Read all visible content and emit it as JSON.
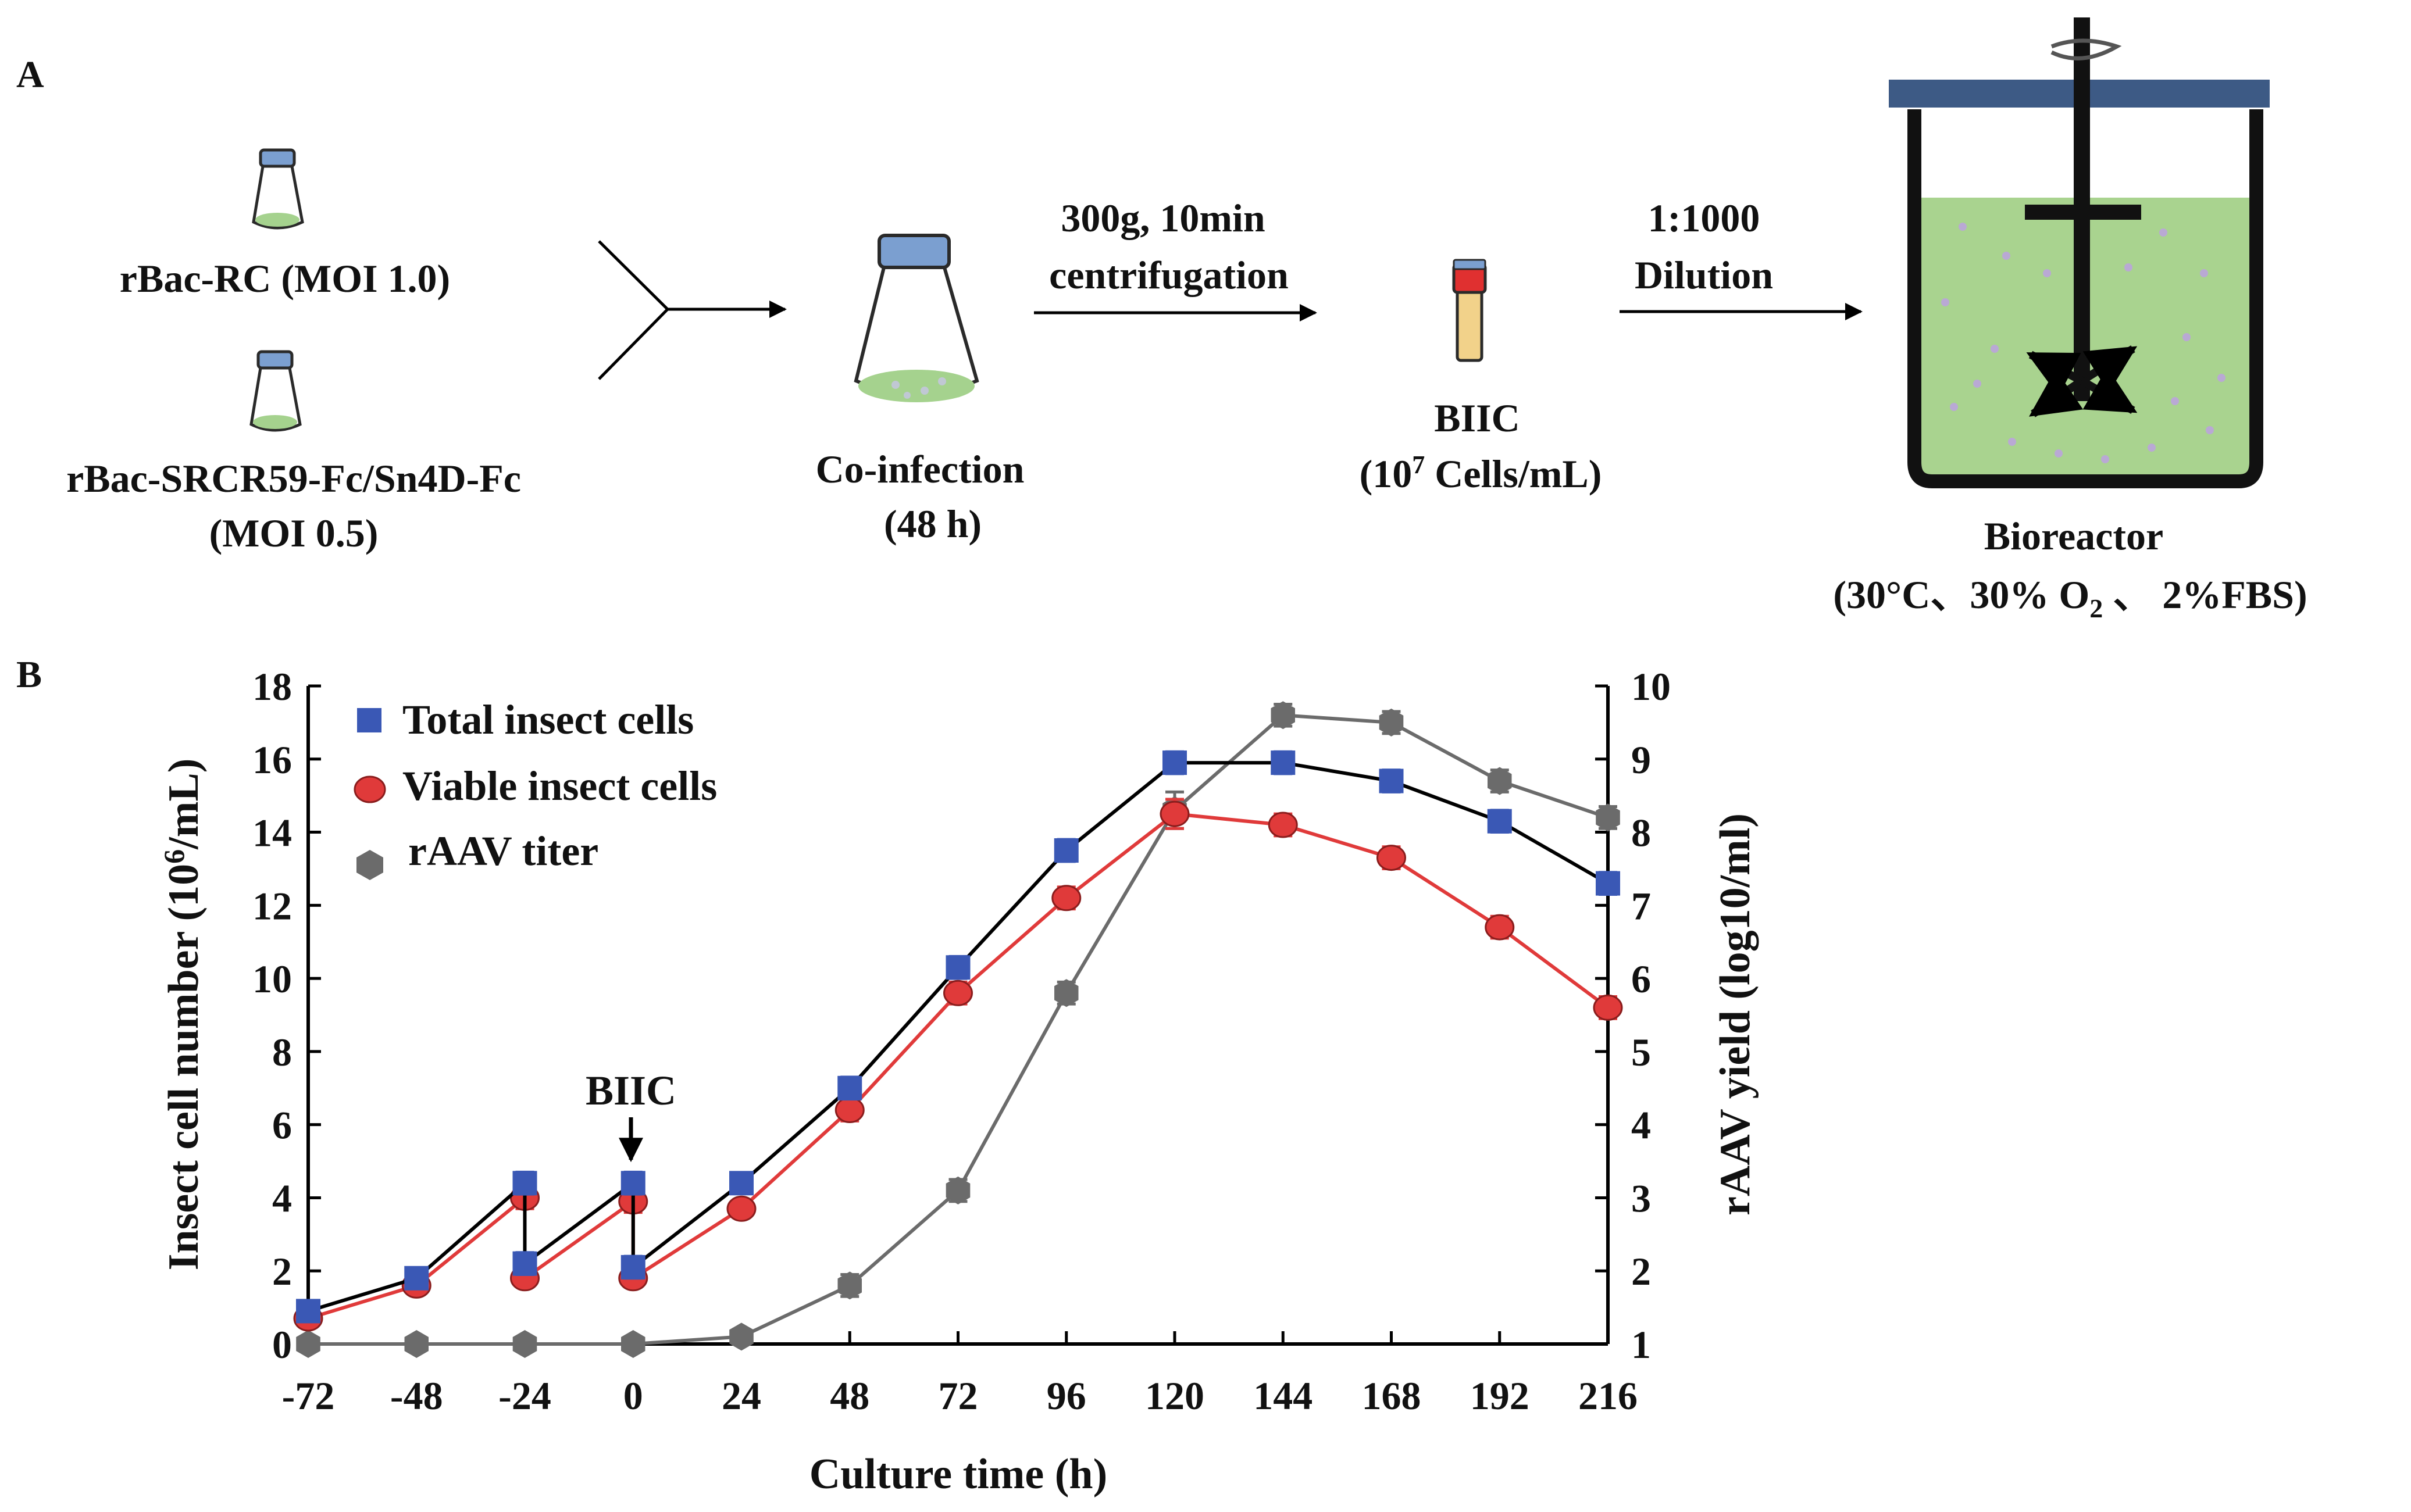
{
  "panel_a": {
    "panel_label": "A",
    "rbac_rc": "rBac-RC (MOI 1.0)",
    "rbac_srcr": "rBac-SRCR59-Fc/Sn4D-Fc",
    "rbac_srcr_moi": "(MOI 0.5)",
    "coinfection": "Co-infection",
    "coinfection_time": "(48 h)",
    "centrifuge_line1": "300g, 10min",
    "centrifuge_line2": "centrifugation",
    "biic": "BIIC",
    "biic_density_pre": "(10",
    "biic_density_exp": "7",
    "biic_density_post": " Cells/mL)",
    "dilution_line1": "1:1000",
    "dilution_line2": "Dilution",
    "bioreactor": "Bioreactor",
    "cond_pre": "(30°C、30% O",
    "cond_sub": "2",
    "cond_post": " 、 2%FBS)",
    "colors": {
      "cap": "#7b9fd0",
      "medium": "#a9d38f",
      "lid": "#3d5a85",
      "tube": "#f2d28a",
      "tube_cap": "#e03030"
    }
  },
  "chart_data": {
    "panel_label": "B",
    "type": "line",
    "xlabel": "Culture time (h)",
    "ylabel_left_pre": "Insect cell number (10",
    "ylabel_left_sup": "6",
    "ylabel_left_post": "/mL)",
    "ylabel_right": "rAAV yield (log10/ml)",
    "x_ticks": [
      -72,
      -48,
      -24,
      0,
      24,
      48,
      72,
      96,
      120,
      144,
      168,
      192,
      216
    ],
    "xlim": [
      -72,
      216
    ],
    "ylim_left": [
      0,
      18
    ],
    "yticks_left": [
      0,
      2,
      4,
      6,
      8,
      10,
      12,
      14,
      16,
      18
    ],
    "ylim_right": [
      1,
      10
    ],
    "yticks_right": [
      1,
      2,
      3,
      4,
      5,
      6,
      7,
      8,
      9,
      10
    ],
    "annotation": {
      "label": "BIIC",
      "x": 0
    },
    "legend_position": "top-left",
    "series": [
      {
        "name": "Total insect cells",
        "axis": "left",
        "marker": "square",
        "color": "#3a58b5",
        "line_color": "#000000",
        "x": [
          -72,
          -48,
          -24,
          -24,
          0,
          0,
          24,
          48,
          72,
          96,
          120,
          144,
          168,
          192,
          216
        ],
        "y": [
          0.9,
          1.8,
          4.4,
          2.2,
          4.4,
          2.1,
          4.4,
          7.0,
          10.3,
          13.5,
          15.9,
          15.9,
          15.4,
          14.3,
          12.6
        ],
        "err": [
          0.2,
          0.2,
          0.3,
          0.3,
          0.3,
          0.3,
          0.2,
          0.3,
          0.3,
          0.3,
          0.3,
          0.3,
          0.3,
          0.3,
          0.3
        ]
      },
      {
        "name": "Viable insect cells",
        "axis": "left",
        "marker": "circle",
        "color": "#e03a3a",
        "line_color": "#e03a3a",
        "x": [
          -72,
          -48,
          -24,
          -24,
          0,
          0,
          24,
          48,
          72,
          96,
          120,
          144,
          168,
          192,
          216
        ],
        "y": [
          0.7,
          1.6,
          4.0,
          1.8,
          3.9,
          1.8,
          3.7,
          6.4,
          9.6,
          12.2,
          14.5,
          14.2,
          13.3,
          11.4,
          9.2
        ],
        "err": [
          0.2,
          0.2,
          0.3,
          0.2,
          0.3,
          0.2,
          0.2,
          0.3,
          0.3,
          0.3,
          0.4,
          0.3,
          0.3,
          0.3,
          0.3
        ]
      },
      {
        "name": "rAAV titer",
        "axis": "right",
        "marker": "hexagon",
        "color": "#6b6b6b",
        "line_color": "#6b6b6b",
        "x": [
          -72,
          -48,
          -24,
          0,
          24,
          48,
          72,
          96,
          120,
          144,
          168,
          192,
          216
        ],
        "y": [
          1.0,
          1.0,
          1.0,
          1.0,
          1.1,
          1.8,
          3.1,
          5.8,
          8.3,
          9.6,
          9.5,
          8.7,
          8.2
        ],
        "err": [
          0,
          0,
          0,
          0,
          0.1,
          0.15,
          0.15,
          0.15,
          0.25,
          0.15,
          0.15,
          0.15,
          0.15
        ]
      }
    ]
  }
}
